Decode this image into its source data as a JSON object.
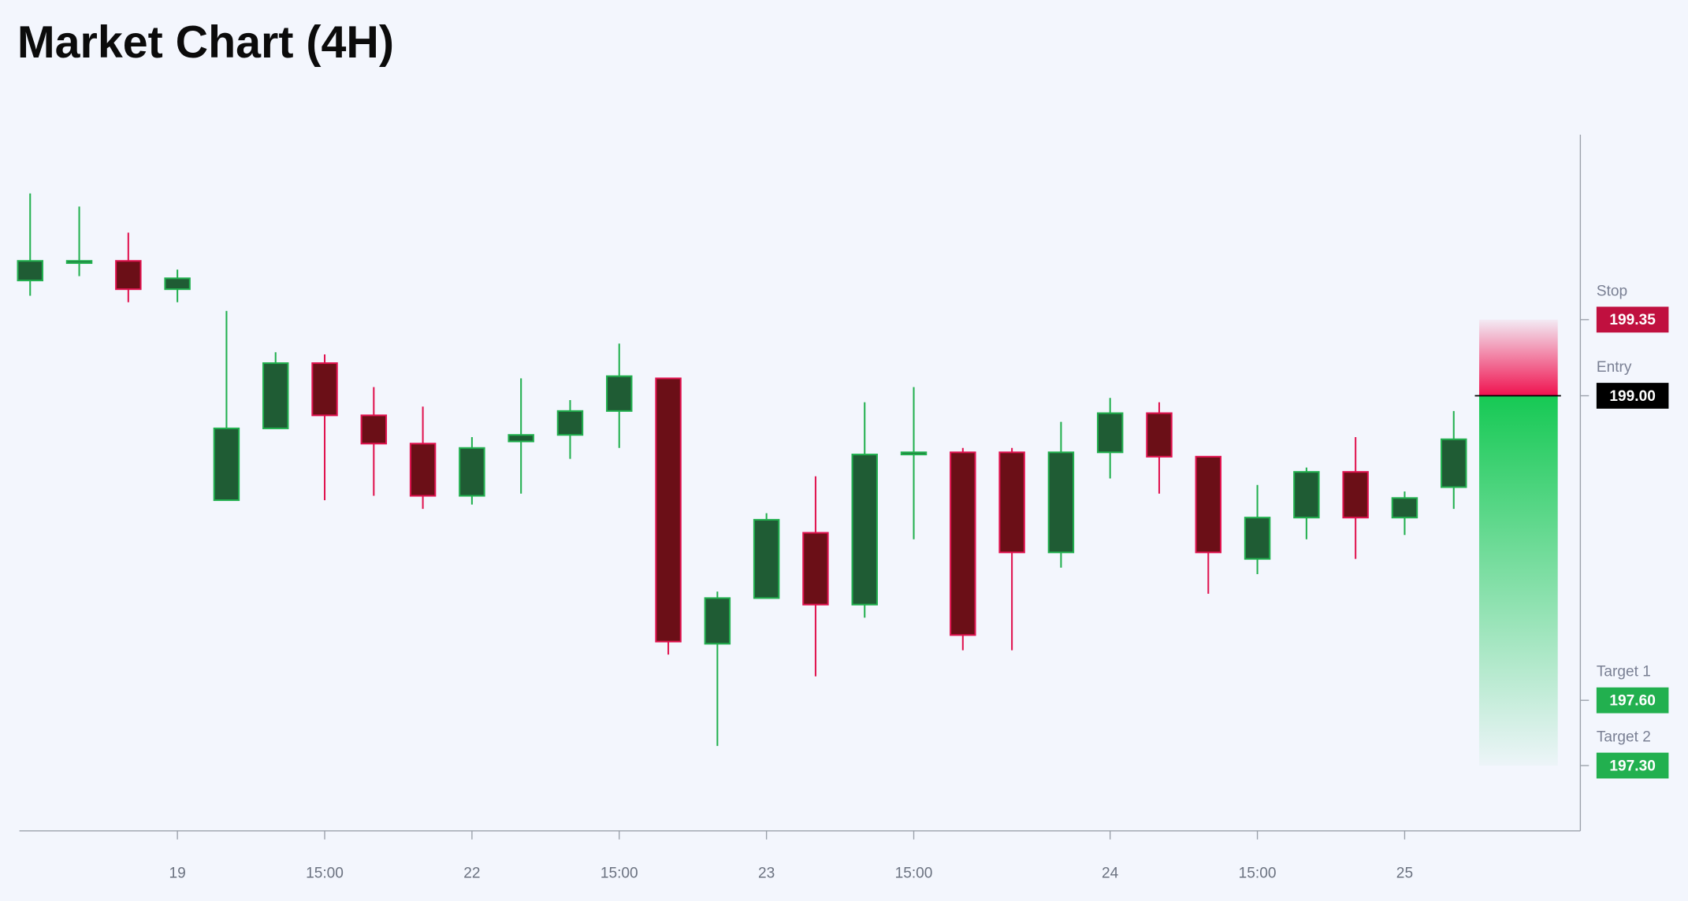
{
  "chart_data": {
    "type": "candlestick",
    "title": "Market Chart (4H)",
    "categories": [
      null,
      null,
      null,
      "19",
      null,
      null,
      "15:00",
      null,
      null,
      "22",
      null,
      null,
      "15:00",
      null,
      null,
      "23",
      null,
      null,
      "15:00",
      null,
      null,
      null,
      "24",
      null,
      null,
      "15:00",
      null,
      null,
      "25",
      null
    ],
    "open": [
      199.53,
      199.61,
      199.62,
      199.49,
      198.52,
      198.85,
      199.15,
      198.91,
      198.78,
      198.54,
      198.79,
      198.82,
      198.93,
      199.08,
      197.86,
      198.07,
      198.37,
      198.04,
      198.73,
      198.74,
      198.74,
      198.28,
      198.74,
      198.92,
      198.72,
      198.25,
      198.44,
      198.65,
      198.44,
      198.58
    ],
    "high": [
      199.93,
      199.87,
      199.75,
      199.58,
      199.39,
      199.2,
      199.19,
      199.04,
      198.95,
      198.81,
      199.08,
      198.98,
      199.24,
      199.08,
      198.1,
      198.46,
      198.63,
      198.97,
      199.04,
      198.76,
      198.76,
      198.88,
      198.99,
      198.97,
      198.72,
      198.59,
      198.67,
      198.81,
      198.56,
      198.93
    ],
    "low": [
      199.46,
      199.55,
      199.43,
      199.43,
      198.52,
      198.85,
      198.52,
      198.54,
      198.48,
      198.5,
      198.55,
      198.71,
      198.76,
      197.81,
      197.39,
      198.07,
      197.71,
      197.98,
      198.34,
      197.83,
      197.83,
      198.21,
      198.62,
      198.55,
      198.09,
      198.18,
      198.34,
      198.25,
      198.36,
      198.48
    ],
    "close": [
      199.62,
      199.62,
      199.49,
      199.54,
      198.85,
      199.15,
      198.91,
      198.78,
      198.54,
      198.76,
      198.82,
      198.93,
      199.09,
      197.87,
      198.07,
      198.43,
      198.04,
      198.73,
      198.74,
      197.9,
      198.28,
      198.74,
      198.92,
      198.72,
      198.28,
      198.44,
      198.65,
      198.44,
      198.53,
      198.8
    ],
    "up_color": "#22b04f",
    "up_fill": "#1f5c34",
    "down_color": "#e0134f",
    "down_fill": "#6b0f17",
    "ylim": [
      197.0,
      200.2
    ],
    "levels": [
      {
        "name": "Stop",
        "value": 199.35,
        "value_label": "199.35",
        "color": "#c0103f"
      },
      {
        "name": "Entry",
        "value": 199.0,
        "value_label": "199.00",
        "color": "#000000"
      },
      {
        "name": "Target 1",
        "value": 197.6,
        "value_label": "197.60",
        "color": "#22b04f"
      },
      {
        "name": "Target 2",
        "value": 197.3,
        "value_label": "197.30",
        "color": "#22b04f"
      }
    ]
  }
}
